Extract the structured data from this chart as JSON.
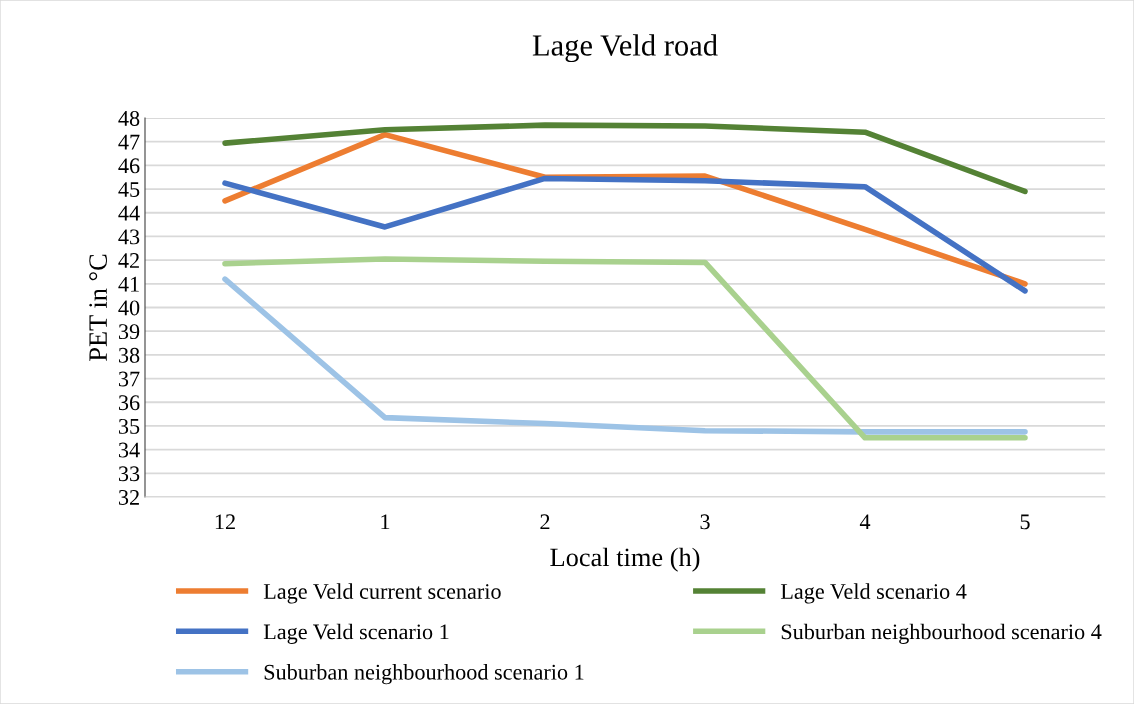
{
  "chart_data": {
    "type": "line",
    "title": "Lage Veld road",
    "xlabel": "Local time (h)",
    "ylabel": "PET in °C",
    "categories": [
      "12",
      "1",
      "2",
      "3",
      "4",
      "5"
    ],
    "series": [
      {
        "name": "Lage Veld current scenario",
        "color": "#ed7d31",
        "values": [
          44.5,
          47.3,
          45.5,
          45.55,
          43.3,
          41.0
        ]
      },
      {
        "name": "Lage Veld scenario 1",
        "color": "#4472c4",
        "values": [
          45.25,
          43.4,
          45.45,
          45.35,
          45.1,
          40.7
        ]
      },
      {
        "name": "Suburban neighbourhood scenario 1",
        "color": "#9dc3e6",
        "values": [
          41.2,
          35.35,
          35.1,
          34.8,
          34.75,
          34.75
        ]
      },
      {
        "name": "Lage Veld scenario 4",
        "color": "#548235",
        "values": [
          46.94,
          47.5,
          47.7,
          47.66,
          47.4,
          44.9
        ]
      },
      {
        "name": "Suburban neighbourhood scenario 4",
        "color": "#a9d18e",
        "values": [
          41.85,
          42.05,
          41.95,
          41.9,
          34.5,
          34.5
        ]
      }
    ],
    "ylim": [
      32,
      48
    ],
    "yticks": [
      32,
      33,
      34,
      35,
      36,
      37,
      38,
      39,
      40,
      41,
      42,
      43,
      44,
      45,
      46,
      47,
      48
    ],
    "grid": "y",
    "legend": "bottom",
    "marker": "none",
    "line_style": "solid"
  }
}
